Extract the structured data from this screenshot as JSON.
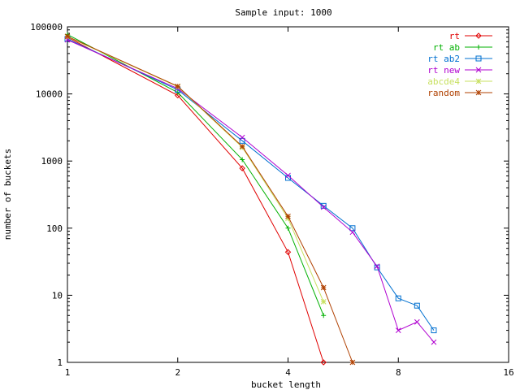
{
  "chart_data": {
    "type": "line",
    "title": "Sample input: 1000",
    "xlabel": "bucket length",
    "ylabel": "number of buckets",
    "xscale": "log2",
    "yscale": "log10",
    "xlim": [
      1,
      16
    ],
    "ylim": [
      1,
      100000
    ],
    "xticks": [
      1,
      2,
      4,
      8,
      16
    ],
    "xtick_labels": [
      "1",
      "2",
      "4",
      "8",
      "16"
    ],
    "yticks": [
      1,
      10,
      100,
      1000,
      10000,
      100000
    ],
    "ytick_labels": [
      "1",
      "10",
      "100",
      "1000",
      "10000",
      "100000"
    ],
    "grid": false,
    "legend_position": "top-right",
    "series": [
      {
        "name": "rt",
        "color": "#e00000",
        "marker": "diamond",
        "points": [
          [
            1,
            70000
          ],
          [
            2,
            9500
          ],
          [
            3,
            780
          ],
          [
            4,
            44
          ],
          [
            5,
            1
          ]
        ]
      },
      {
        "name": "rt ab",
        "color": "#00b000",
        "marker": "plus",
        "points": [
          [
            1,
            77000
          ],
          [
            2,
            10500
          ],
          [
            3,
            1050
          ],
          [
            4,
            100
          ],
          [
            5,
            5
          ]
        ]
      },
      {
        "name": "rt ab2",
        "color": "#0070d0",
        "marker": "square",
        "points": [
          [
            1,
            66000
          ],
          [
            2,
            11500
          ],
          [
            3,
            2000
          ],
          [
            4,
            560
          ],
          [
            5,
            215
          ],
          [
            6,
            100
          ],
          [
            7,
            26
          ],
          [
            8,
            9
          ],
          [
            9,
            7
          ],
          [
            10,
            3
          ]
        ]
      },
      {
        "name": "rt new",
        "color": "#b000d0",
        "marker": "cross",
        "points": [
          [
            1,
            64000
          ],
          [
            2,
            12000
          ],
          [
            3,
            2250
          ],
          [
            4,
            610
          ],
          [
            5,
            205
          ],
          [
            6,
            87
          ],
          [
            7,
            27
          ],
          [
            8,
            3
          ],
          [
            9,
            4
          ],
          [
            10,
            2
          ]
        ]
      },
      {
        "name": "abcde4",
        "color": "#c8e060",
        "marker": "asterisk",
        "points": [
          [
            1,
            71000
          ],
          [
            2,
            12800
          ],
          [
            3,
            1600
          ],
          [
            4,
            140
          ],
          [
            5,
            8
          ]
        ]
      },
      {
        "name": "random",
        "color": "#b04000",
        "marker": "asterisk",
        "points": [
          [
            1,
            72000
          ],
          [
            2,
            13000
          ],
          [
            3,
            1650
          ],
          [
            4,
            150
          ],
          [
            5,
            13
          ],
          [
            6,
            1
          ]
        ]
      }
    ]
  }
}
